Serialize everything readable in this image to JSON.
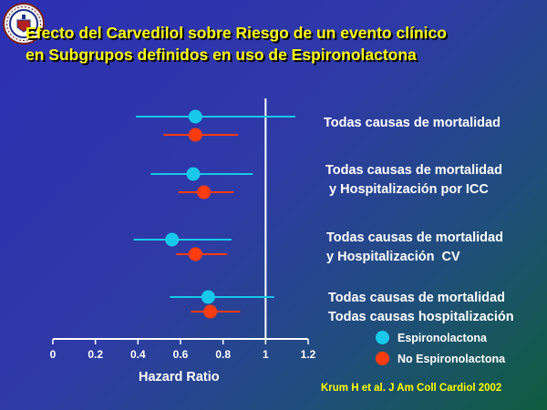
{
  "title": {
    "line1": "Efecto del Carvedilol sobre Riesgo de un evento clínico",
    "line2": "en Subgrupos definidos en uso de  Espironolactona"
  },
  "colors": {
    "espironolactona": "#16c8ea",
    "no_espironolactona": "#ff3b10",
    "title": "#ffff00",
    "axis": "#ffffff"
  },
  "rows": [
    {
      "label_lines": [
        "Todas causas de mortalidad"
      ]
    },
    {
      "label_lines": [
        "Todas causas de mortalidad",
        " y Hospitalización por ICC"
      ]
    },
    {
      "label_lines": [
        "Todas causas de mortalidad",
        "y Hospitalización  CV"
      ]
    },
    {
      "label_lines": [
        "Todas causas de mortalidad",
        "Todas causas hospitalización"
      ]
    }
  ],
  "legend": {
    "espironolactona": "Espironolactona",
    "no_espironolactona": "No Espironolactona"
  },
  "citation": "Krum H et al. J Am Coll Cardiol 2002",
  "chart_data": {
    "type": "forest",
    "xlabel": "Hazard Ratio",
    "xlim": [
      0,
      1.2
    ],
    "xticks": [
      "0",
      "0.2",
      "0.4",
      "0.6",
      "0.8",
      "1",
      "1.2"
    ],
    "reference_line": 1,
    "categories": [
      "Todas causas de mortalidad",
      "Todas causas de mortalidad y Hospitalización por ICC",
      "Todas causas de mortalidad y Hospitalización CV",
      "Todas causas de mortalidad Todas causas hospitalización"
    ],
    "series": [
      {
        "name": "Espironolactona",
        "color": "#16c8ea",
        "estimates": [
          0.67,
          0.66,
          0.56,
          0.73
        ],
        "lower": [
          0.39,
          0.46,
          0.38,
          0.55
        ],
        "upper": [
          1.14,
          0.94,
          0.84,
          1.04
        ]
      },
      {
        "name": "No Espironolactona",
        "color": "#ff3b10",
        "estimates": [
          0.67,
          0.71,
          0.67,
          0.74
        ],
        "lower": [
          0.52,
          0.59,
          0.58,
          0.65
        ],
        "upper": [
          0.87,
          0.85,
          0.82,
          0.88
        ]
      }
    ]
  }
}
